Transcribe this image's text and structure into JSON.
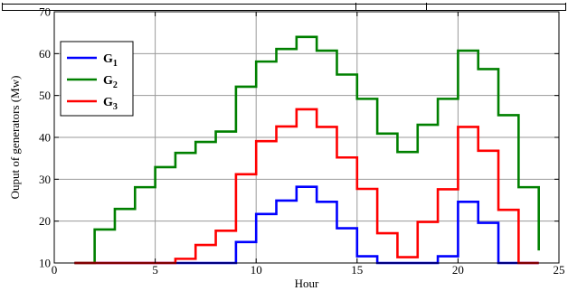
{
  "chart_data": {
    "type": "line",
    "step": true,
    "title": "",
    "xlabel": "Hour",
    "ylabel": "Ouput of generators (Mw)",
    "xlim": [
      0,
      25
    ],
    "ylim": [
      10,
      70
    ],
    "xticks": [
      0,
      5,
      10,
      15,
      20,
      25
    ],
    "yticks": [
      10,
      20,
      30,
      40,
      50,
      60,
      70
    ],
    "grid": true,
    "legend": {
      "placement": "top-left"
    },
    "series": [
      {
        "name": "G1",
        "label_main": "G",
        "label_sub": "1",
        "color": "#0000ff",
        "x": [
          1,
          2,
          3,
          4,
          5,
          6,
          7,
          8,
          9,
          10,
          11,
          12,
          13,
          14,
          15,
          16,
          17,
          18,
          19,
          20,
          21,
          22,
          23,
          24
        ],
        "y": [
          10,
          10,
          10,
          10,
          10,
          10,
          10,
          10,
          15,
          21.7,
          24.9,
          28.2,
          24.6,
          18.3,
          11.6,
          10,
          10,
          10,
          11.6,
          24.6,
          19.6,
          10,
          10,
          10
        ]
      },
      {
        "name": "G2",
        "label_main": "G",
        "label_sub": "2",
        "color": "#008000",
        "x": [
          1,
          2,
          3,
          4,
          5,
          6,
          7,
          8,
          9,
          10,
          11,
          12,
          13,
          14,
          15,
          16,
          17,
          18,
          19,
          20,
          21,
          22,
          23,
          24
        ],
        "y": [
          10,
          18,
          22.9,
          28.1,
          32.9,
          36.3,
          38.9,
          41.4,
          52.1,
          58.1,
          61.1,
          64,
          60.7,
          55,
          49.2,
          40.9,
          36.5,
          43,
          49.2,
          60.7,
          56.3,
          45.3,
          28.1,
          13
        ]
      },
      {
        "name": "G3",
        "label_main": "G",
        "label_sub": "3",
        "color": "#ff0000",
        "x": [
          1,
          2,
          3,
          4,
          5,
          6,
          7,
          8,
          9,
          10,
          11,
          12,
          13,
          14,
          15,
          16,
          17,
          18,
          19,
          20,
          21,
          22,
          23,
          24
        ],
        "y": [
          10,
          10,
          10,
          10,
          10,
          11,
          14.3,
          17.7,
          31.2,
          39.1,
          42.6,
          46.7,
          42.5,
          35.2,
          27.7,
          17.1,
          11.4,
          19.8,
          27.6,
          42.5,
          36.8,
          22.7,
          10,
          10
        ]
      }
    ]
  }
}
